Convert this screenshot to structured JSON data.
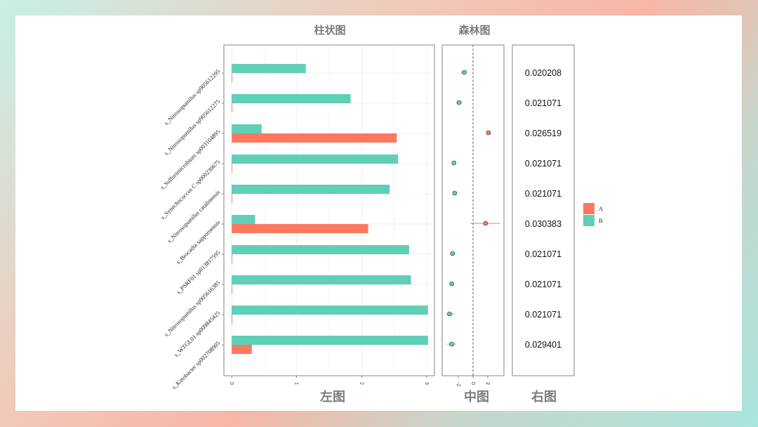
{
  "titles": {
    "left_top": "柱状图",
    "middle_top": "森林图",
    "left_bottom": "左图",
    "middle_bottom": "中图",
    "right_bottom": "右图"
  },
  "colors": {
    "A": "#fe7860",
    "B": "#5fcfb6"
  },
  "chart_data": [
    {
      "type": "bar",
      "orientation": "horizontal",
      "categories": [
        "s_Nitrosopumilus sp905612295",
        "s_Nitrosopumilus sp905612275",
        "s_Sulfurimicrobium sp003104895",
        "s_Synechococcus C sp000230675",
        "s_Nitrosopumilus catalinensis",
        "s_Brocadia sapporoensis",
        "s_PSRF01 sp013817595",
        "s_Nitrosopumilus sp905616385",
        "s_WTGL01 sp009845425",
        "s_Ketobacter sp002708905"
      ],
      "series": [
        {
          "name": "A",
          "values": [
            0.01,
            0.01,
            2.54,
            0.01,
            0.01,
            2.1,
            0.01,
            0.01,
            0.01,
            0.31
          ]
        },
        {
          "name": "B",
          "values": [
            1.14,
            1.83,
            0.46,
            2.56,
            2.43,
            0.36,
            2.73,
            2.76,
            3.02,
            3.02
          ]
        }
      ],
      "xlim": [
        -0.12,
        3.12
      ],
      "xticks": [
        "0",
        "1",
        "2",
        "3"
      ],
      "grid": true
    },
    {
      "type": "scatter",
      "subtype": "forest",
      "points": [
        {
          "category": "s_Nitrosopumilus sp905612295",
          "x": -1.2,
          "low": -1.6,
          "high": -0.8,
          "group": "B"
        },
        {
          "category": "s_Nitrosopumilus sp905612275",
          "x": -1.9,
          "low": -2.3,
          "high": -1.5,
          "group": "B"
        },
        {
          "category": "s_Sulfurimicrobium sp003104895",
          "x": 2.1,
          "low": 1.8,
          "high": 2.4,
          "group": "A"
        },
        {
          "category": "s_Synechococcus C sp000230675",
          "x": -2.6,
          "low": -2.9,
          "high": -2.3,
          "group": "B"
        },
        {
          "category": "s_Nitrosopumilus catalinensis",
          "x": -2.5,
          "low": -2.8,
          "high": -2.2,
          "group": "B"
        },
        {
          "category": "s_Brocadia sapporoensis",
          "x": 1.7,
          "low": -0.4,
          "high": 3.7,
          "group": "A"
        },
        {
          "category": "s_PSRF01 sp013817595",
          "x": -2.8,
          "low": -3.1,
          "high": -2.5,
          "group": "B"
        },
        {
          "category": "s_Nitrosopumilus sp905616385",
          "x": -2.9,
          "low": -3.2,
          "high": -2.6,
          "group": "B"
        },
        {
          "category": "s_WTGL01 sp009845425",
          "x": -3.2,
          "low": -3.6,
          "high": -2.5,
          "group": "B"
        },
        {
          "category": "s_Ketobacter sp002708905",
          "x": -2.9,
          "low": -3.5,
          "high": -2.3,
          "group": "B"
        }
      ],
      "xlim": [
        -4.2,
        4.2
      ],
      "xticks": [
        "-2",
        "0",
        "2"
      ],
      "reference_line": 0
    },
    {
      "type": "table",
      "values": [
        "0.020208",
        "0.021071",
        "0.026519",
        "0.021071",
        "0.021071",
        "0.030383",
        "0.021071",
        "0.021071",
        "0.021071",
        "0.029401"
      ]
    }
  ],
  "legend": {
    "entries": [
      "A",
      "B"
    ],
    "placement": "right"
  }
}
